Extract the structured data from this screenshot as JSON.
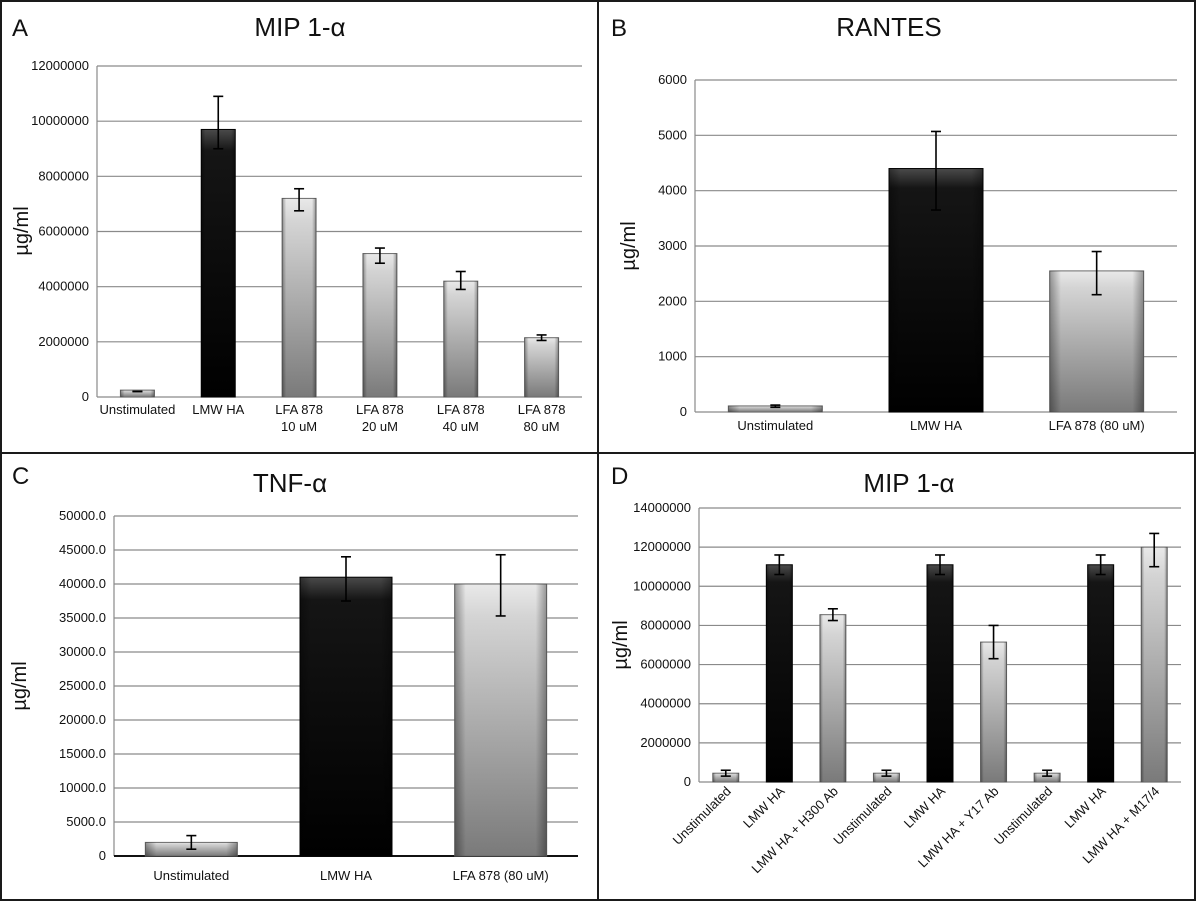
{
  "chart_data": [
    {
      "panel": "A",
      "type": "bar",
      "title": "MIP 1-α",
      "ylabel": "µg/ml",
      "ylim": [
        0,
        12000000
      ],
      "yticks": [
        "0",
        "2000000",
        "4000000",
        "6000000",
        "8000000",
        "10000000",
        "12000000"
      ],
      "categories": [
        [
          "Unstimulated"
        ],
        [
          "LMW HA"
        ],
        [
          "LFA 878",
          "10 uM"
        ],
        [
          "LFA 878",
          "20 uM"
        ],
        [
          "LFA 878",
          "40 uM"
        ],
        [
          "LFA 878",
          "80 uM"
        ]
      ],
      "values": [
        250000,
        9700000,
        7200000,
        5200000,
        4200000,
        2150000
      ],
      "errors": [
        [
          200000,
          200000
        ],
        [
          9000000,
          10900000
        ],
        [
          6750000,
          7550000
        ],
        [
          4850000,
          5400000
        ],
        [
          3900000,
          4550000
        ],
        [
          2050000,
          2250000
        ]
      ],
      "colors": [
        "light",
        "dark",
        "light",
        "light",
        "light",
        "light"
      ],
      "grid": true
    },
    {
      "panel": "B",
      "type": "bar",
      "title": "RANTES",
      "ylabel": "µg/ml",
      "ylim": [
        0,
        6000
      ],
      "yticks": [
        "0",
        "1000",
        "2000",
        "3000",
        "4000",
        "5000",
        "6000"
      ],
      "categories": [
        [
          "Unstimulated"
        ],
        [
          "LMW HA"
        ],
        [
          "LFA 878 (80 uM)"
        ]
      ],
      "values": [
        110,
        4400,
        2550
      ],
      "errors": [
        [
          85,
          125
        ],
        [
          3650,
          5070
        ],
        [
          2120,
          2900
        ]
      ],
      "colors": [
        "light",
        "dark",
        "light"
      ],
      "grid": true
    },
    {
      "panel": "C",
      "type": "bar",
      "title": "TNF-α",
      "ylabel": "µg/ml",
      "ylim": [
        0,
        50000
      ],
      "yticks": [
        "0",
        "5000.0",
        "10000.0",
        "15000.0",
        "20000.0",
        "25000.0",
        "30000.0",
        "35000.0",
        "40000.0",
        "45000.0",
        "50000.0"
      ],
      "categories": [
        [
          "Unstimulated"
        ],
        [
          "LMW HA"
        ],
        [
          "LFA 878 (80 uM)"
        ]
      ],
      "values": [
        2000,
        41000,
        40000
      ],
      "errors": [
        [
          1000,
          3000
        ],
        [
          37500,
          44000
        ],
        [
          35300,
          44300
        ]
      ],
      "colors": [
        "light",
        "dark",
        "light"
      ],
      "grid": true
    },
    {
      "panel": "D",
      "type": "bar",
      "title": "MIP 1-α",
      "ylabel": "µg/ml",
      "ylim": [
        0,
        14000000
      ],
      "yticks": [
        "0",
        "2000000",
        "4000000",
        "6000000",
        "8000000",
        "10000000",
        "12000000",
        "14000000"
      ],
      "categories": [
        [
          "Unstimulated"
        ],
        [
          "LMW HA"
        ],
        [
          "LMW HA + H300 Ab"
        ],
        [
          "Unstimulated"
        ],
        [
          "LMW HA"
        ],
        [
          "LMW HA + Y17 Ab"
        ],
        [
          "Unstimulated"
        ],
        [
          "LMW HA"
        ],
        [
          "LMW HA + M17/4"
        ]
      ],
      "values": [
        450000,
        11100000,
        8550000,
        450000,
        11100000,
        7150000,
        450000,
        11100000,
        12000000
      ],
      "errors": [
        [
          300000,
          600000
        ],
        [
          10600000,
          11600000
        ],
        [
          8250000,
          8850000
        ],
        [
          300000,
          600000
        ],
        [
          10600000,
          11600000
        ],
        [
          6300000,
          8000000
        ],
        [
          300000,
          600000
        ],
        [
          10600000,
          11600000
        ],
        [
          11000000,
          12700000
        ]
      ],
      "colors": [
        "light",
        "dark",
        "light",
        "light",
        "dark",
        "light",
        "light",
        "dark",
        "light"
      ],
      "grid": true
    }
  ]
}
